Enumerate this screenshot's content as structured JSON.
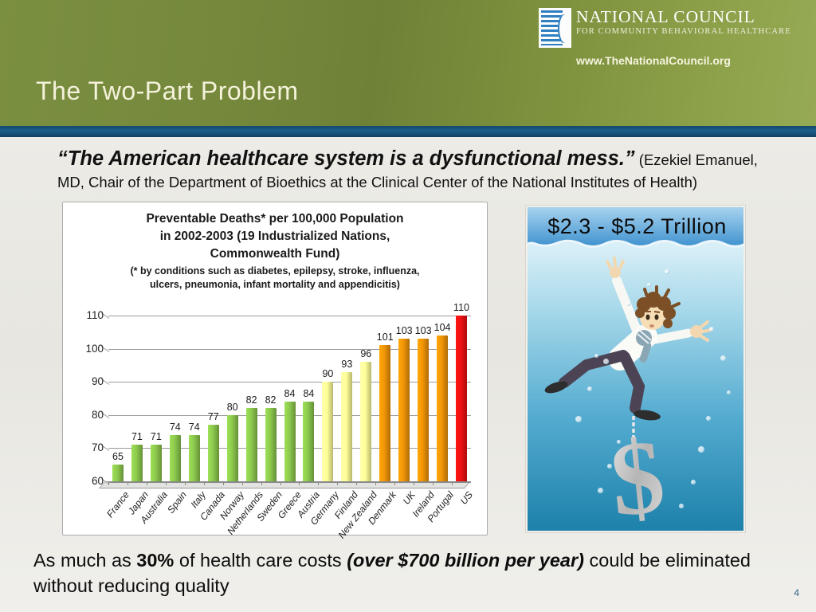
{
  "header": {
    "title": "The Two-Part Problem",
    "logo_line1": "NATIONAL COUNCIL",
    "logo_line2": "FOR COMMUNITY BEHAVIORAL HEALTHCARE",
    "website": "www.TheNationalCouncil.org"
  },
  "quote": {
    "main": "“The American healthcare system is a dysfunctional mess.”",
    "attribution": " (Ezekiel Emanuel, MD, Chair of the Department of Bioethics at the Clinical Center of the National Institutes of Health)"
  },
  "trillion_caption": "$2.3 - $5.2 Trillion",
  "statement": {
    "part1": "As much as ",
    "part2": "30%",
    "part3": " of health care costs ",
    "part4": "(over $700 billion per  year)",
    "part5": " could be eliminated without  reducing quality"
  },
  "page_number": "4",
  "chart_data": {
    "type": "bar",
    "title_lines": [
      "Preventable Deaths* per 100,000 Population",
      "in 2002-2003  (19 Industrialized Nations,",
      "Commonwealth Fund)"
    ],
    "subtitle_lines": [
      "(* by conditions such as diabetes, epilepsy, stroke, influenza,",
      "ulcers, pneumonia, infant mortality and appendicitis)"
    ],
    "categories": [
      "France",
      "Japan",
      "Australia",
      "Spain",
      "Italy",
      "Canada",
      "Norway",
      "Netherlands",
      "Sweden",
      "Greece",
      "Austria",
      "Germany",
      "Finland",
      "New Zealand",
      "Denmark",
      "UK",
      "Ireland",
      "Portugal",
      "US"
    ],
    "values": [
      65,
      71,
      71,
      74,
      74,
      77,
      80,
      82,
      82,
      84,
      84,
      90,
      93,
      96,
      101,
      103,
      103,
      104,
      110
    ],
    "bar_colors": [
      "#8cc94d",
      "#8cc94d",
      "#8cc94d",
      "#8cc94d",
      "#8cc94d",
      "#8cc94d",
      "#8cc94d",
      "#8cc94d",
      "#8cc94d",
      "#8cc94d",
      "#8cc94d",
      "#ffff99",
      "#ffff99",
      "#ffff99",
      "#f29507",
      "#f29507",
      "#f29507",
      "#f29507",
      "#ee1111"
    ],
    "xlabel": "",
    "ylabel": "",
    "ylim": [
      60,
      110
    ],
    "yticks": [
      60,
      70,
      80,
      90,
      100,
      110
    ],
    "grid": true,
    "legend": "none"
  }
}
